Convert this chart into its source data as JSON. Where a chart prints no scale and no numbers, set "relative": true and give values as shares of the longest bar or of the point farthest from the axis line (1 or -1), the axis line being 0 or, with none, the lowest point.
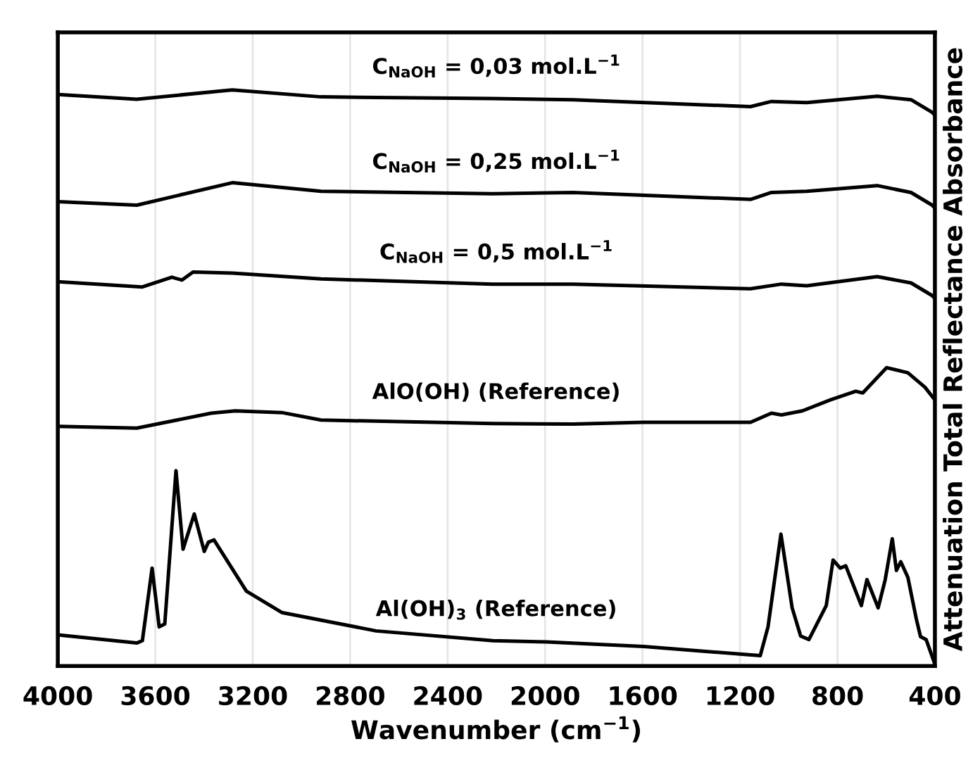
{
  "chart_data": {
    "type": "line",
    "relative": true,
    "xlabel": "Wavenumber (cm$^{−1}$)",
    "ylabel": "Attenuation Total Reflectance Absorbance",
    "xlim": [
      4000,
      400
    ],
    "xticks": [
      4000,
      3600,
      3200,
      2800,
      2400,
      2000,
      1600,
      1200,
      800,
      400
    ],
    "grid": "x",
    "legend": false,
    "marker": "none",
    "line_style": "solid",
    "series": [
      {
        "name": "C$_{NaOH}$ = 0,03 mol.L$^{−1}$",
        "color": "#000000",
        "x": [
          4000,
          3676,
          3284,
          2920,
          2215,
          1885,
          1157,
          1071,
          926,
          637,
          498,
          411,
          400
        ],
        "values": [
          0.992,
          0.984,
          1.0,
          0.988,
          0.985,
          0.983,
          0.971,
          0.98,
          0.978,
          0.989,
          0.983,
          0.961,
          0.956
        ]
      },
      {
        "name": "C$_{NaOH}$ = 0,25 mol.L$^{−1}$",
        "color": "#000000",
        "x": [
          4000,
          3676,
          3284,
          2920,
          2215,
          1885,
          1157,
          1071,
          926,
          637,
          498,
          411,
          400
        ],
        "values": [
          0.806,
          0.8,
          0.839,
          0.824,
          0.82,
          0.822,
          0.81,
          0.822,
          0.824,
          0.834,
          0.822,
          0.8,
          0.795
        ]
      },
      {
        "name": "C$_{NaOH}$ = 0,5 mol.L$^{−1}$",
        "color": "#000000",
        "x": [
          4000,
          3653,
          3532,
          3491,
          3445,
          3284,
          2920,
          2215,
          1885,
          1157,
          1030,
          926,
          637,
          498,
          411,
          400
        ],
        "values": [
          0.667,
          0.658,
          0.675,
          0.67,
          0.684,
          0.682,
          0.672,
          0.663,
          0.663,
          0.655,
          0.663,
          0.66,
          0.676,
          0.665,
          0.643,
          0.638
        ]
      },
      {
        "name": "AlO(OH) (Reference)",
        "color": "#000000",
        "x": [
          4000,
          3676,
          3370,
          3272,
          3081,
          2920,
          2215,
          1885,
          1596,
          1157,
          1071,
          1030,
          944,
          829,
          725,
          696,
          598,
          511,
          441,
          400
        ],
        "values": [
          0.416,
          0.413,
          0.439,
          0.443,
          0.44,
          0.427,
          0.421,
          0.42,
          0.423,
          0.423,
          0.439,
          0.436,
          0.443,
          0.462,
          0.477,
          0.474,
          0.518,
          0.509,
          0.484,
          0.462
        ]
      },
      {
        "name": "Al(OH)$_{3}$ (Reference)",
        "color": "#000000",
        "x": [
          4000,
          3676,
          3653,
          3613,
          3584,
          3561,
          3515,
          3486,
          3440,
          3399,
          3382,
          3359,
          3226,
          3081,
          2694,
          2215,
          1995,
          1596,
          1117,
          1085,
          1032,
          986,
          951,
          917,
          846,
          818,
          789,
          766,
          702,
          679,
          633,
          604,
          575,
          558,
          540,
          511,
          476,
          459,
          436,
          400
        ],
        "values": [
          0.054,
          0.04,
          0.044,
          0.17,
          0.068,
          0.073,
          0.339,
          0.203,
          0.264,
          0.199,
          0.215,
          0.219,
          0.13,
          0.093,
          0.061,
          0.044,
          0.042,
          0.034,
          0.018,
          0.068,
          0.229,
          0.101,
          0.052,
          0.046,
          0.105,
          0.184,
          0.17,
          0.174,
          0.105,
          0.15,
          0.101,
          0.15,
          0.221,
          0.166,
          0.181,
          0.154,
          0.081,
          0.051,
          0.046,
          0.003
        ]
      }
    ]
  }
}
